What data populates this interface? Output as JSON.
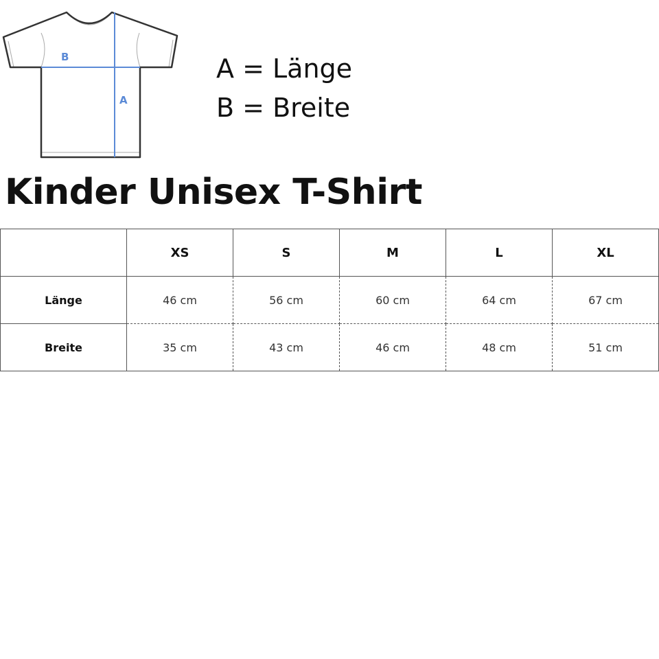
{
  "diagram": {
    "label_a": "A",
    "label_b": "B",
    "measure_color": "#5b8ad6"
  },
  "legend": {
    "a": "A = Länge",
    "b": "B = Breite"
  },
  "title": "Kinder Unisex T-Shirt",
  "table": {
    "sizes": [
      "XS",
      "S",
      "M",
      "L",
      "XL"
    ],
    "rows": [
      {
        "label": "Länge",
        "values": [
          "46 cm",
          "56 cm",
          "60 cm",
          "64 cm",
          "67 cm"
        ]
      },
      {
        "label": "Breite",
        "values": [
          "35 cm",
          "43 cm",
          "46 cm",
          "48 cm",
          "51 cm"
        ]
      }
    ]
  }
}
